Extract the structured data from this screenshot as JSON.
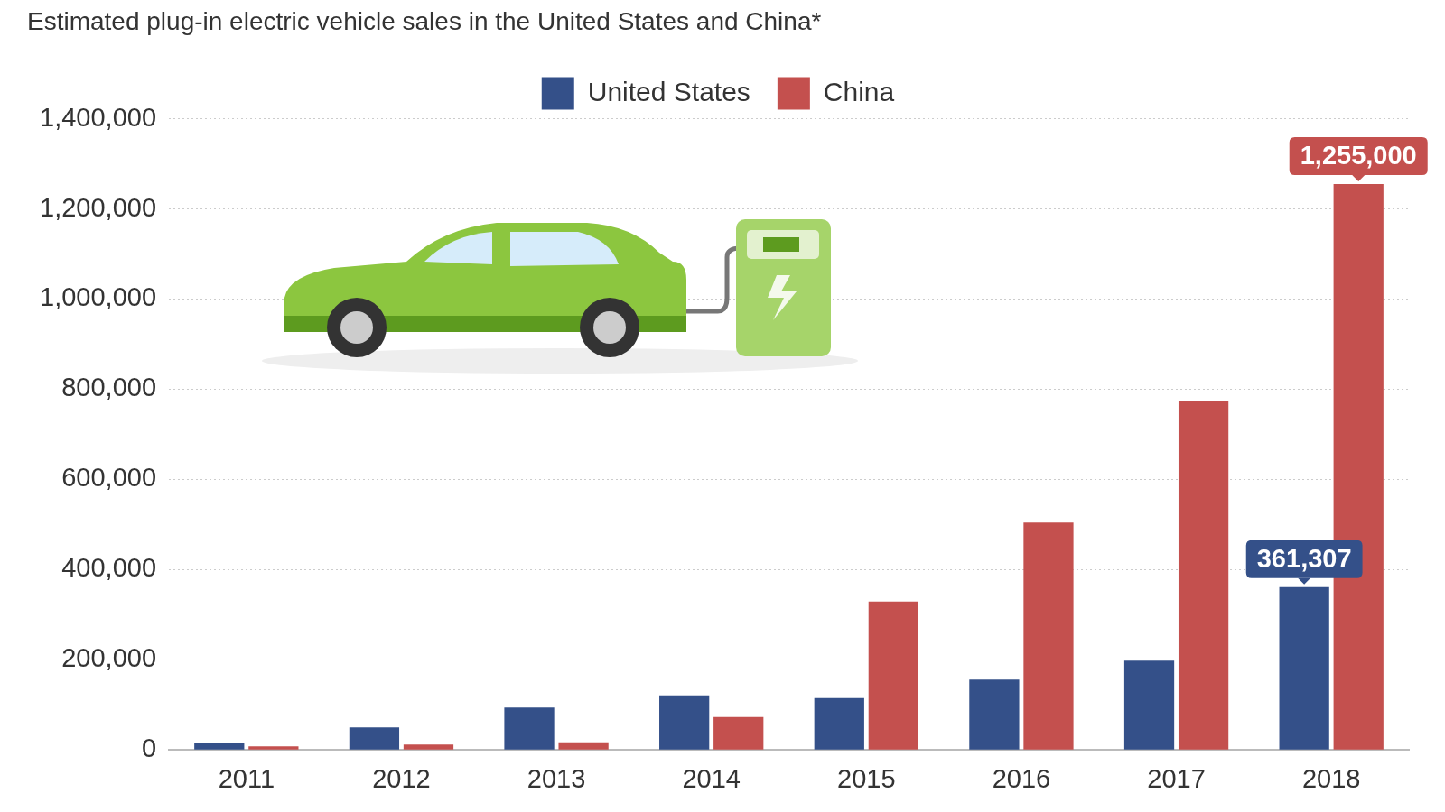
{
  "chart_data": {
    "type": "bar",
    "title": "Estimated plug-in electric vehicle sales in the United States and China*",
    "categories": [
      "2011",
      "2012",
      "2013",
      "2014",
      "2015",
      "2016",
      "2017",
      "2018"
    ],
    "series": [
      {
        "name": "United States",
        "color": "#345089",
        "values": [
          15000,
          50000,
          94000,
          121000,
          115000,
          156000,
          198000,
          361307
        ],
        "value_labels": [
          null,
          null,
          null,
          null,
          null,
          null,
          null,
          "361,307"
        ]
      },
      {
        "name": "China",
        "color": "#c4504e",
        "values": [
          8000,
          12000,
          17000,
          73000,
          329000,
          504000,
          775000,
          1255000
        ],
        "value_labels": [
          null,
          null,
          null,
          null,
          null,
          null,
          null,
          "1,255,000"
        ]
      }
    ],
    "ylim": [
      0,
      1400000
    ],
    "yticks": [
      0,
      {
        "value": 200000,
        "label": "200,000"
      },
      {
        "value": 400000,
        "label": "400,000"
      },
      {
        "value": 600000,
        "label": "600,000"
      },
      {
        "value": 800000,
        "label": "800,000"
      },
      {
        "value": 1000000,
        "label": "1,000,000"
      },
      {
        "value": 1200000,
        "label": "1,200,000"
      },
      {
        "value": 1400000,
        "label": "1,400,000"
      }
    ],
    "grid": true,
    "legend": "top",
    "data_labels": true
  }
}
